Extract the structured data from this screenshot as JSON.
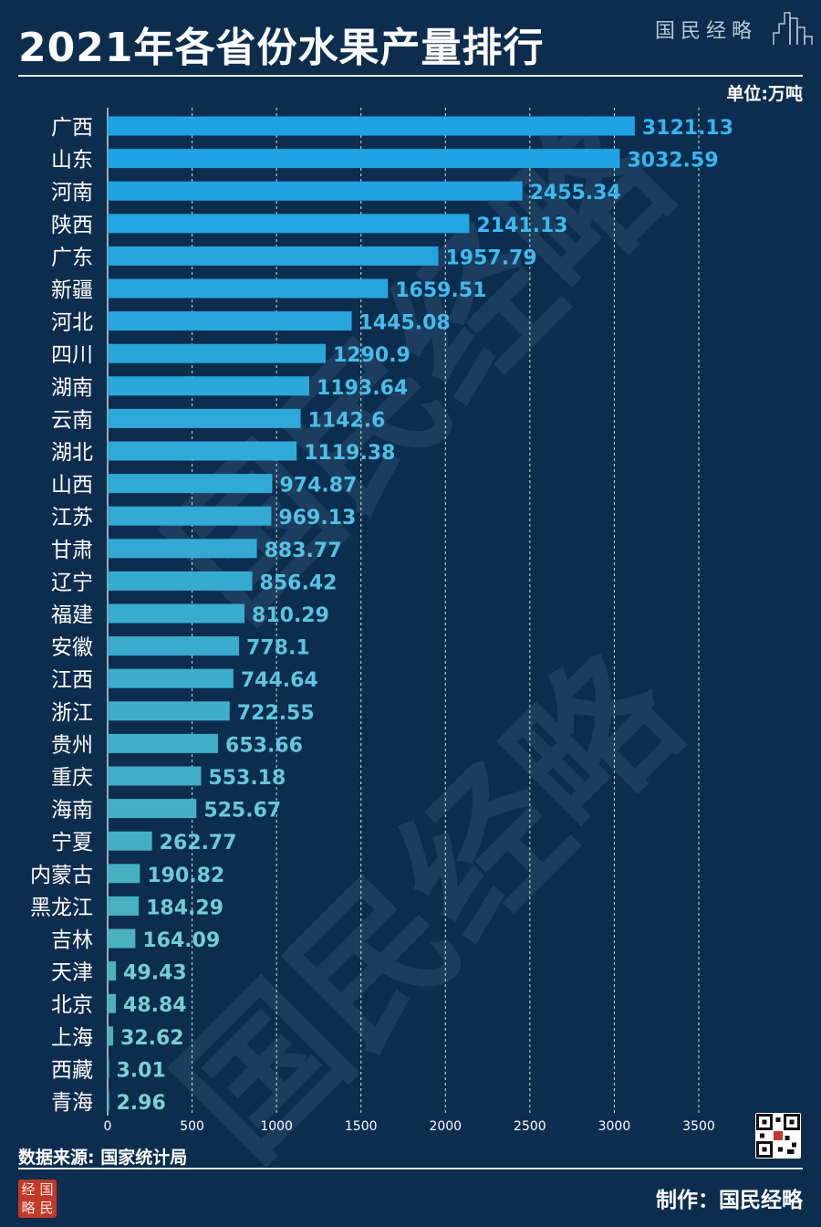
{
  "header": {
    "title": "2021年各省份水果产量排行",
    "brand": "国民经略",
    "unit": "单位:万吨"
  },
  "footer": {
    "source": "数据来源: 国家统计局",
    "maker": "制作：国民经略",
    "seal_text": [
      "经",
      "国",
      "略",
      "民"
    ]
  },
  "watermark_text": "国民经略",
  "colors": {
    "background": "#0c2d4e",
    "bar_top": "#1da3e6",
    "bar_bottom": "#52b4b8",
    "label_top": "#35b6f2",
    "label_bottom": "#7fd1d2",
    "grid": "#ffffff"
  },
  "chart_data": {
    "type": "bar",
    "orientation": "horizontal",
    "categories": [
      "广西",
      "山东",
      "河南",
      "陕西",
      "广东",
      "新疆",
      "河北",
      "四川",
      "湖南",
      "云南",
      "湖北",
      "山西",
      "江苏",
      "甘肃",
      "辽宁",
      "福建",
      "安徽",
      "江西",
      "浙江",
      "贵州",
      "重庆",
      "海南",
      "宁夏",
      "内蒙古",
      "黑龙江",
      "吉林",
      "天津",
      "北京",
      "上海",
      "西藏",
      "青海"
    ],
    "values": [
      3121.13,
      3032.59,
      2455.34,
      2141.13,
      1957.79,
      1659.51,
      1445.08,
      1290.9,
      1193.64,
      1142.6,
      1119.38,
      974.87,
      969.13,
      883.77,
      856.42,
      810.29,
      778.1,
      744.64,
      722.55,
      653.66,
      553.18,
      525.67,
      262.77,
      190.82,
      184.29,
      164.09,
      49.43,
      48.84,
      32.62,
      3.01,
      2.96
    ],
    "value_labels": [
      "3121.13",
      "3032.59",
      "2455.34",
      "2141.13",
      "1957.79",
      "1659.51",
      "1445.08",
      "1290.9",
      "1193.64",
      "1142.6",
      "1119.38",
      "974.87",
      "969.13",
      "883.77",
      "856.42",
      "810.29",
      "778.1",
      "744.64",
      "722.55",
      "653.66",
      "553.18",
      "525.67",
      "262.77",
      "190.82",
      "184.29",
      "164.09",
      "49.43",
      "48.84",
      "32.62",
      "3.01",
      "2.96"
    ],
    "xlim": [
      0,
      3500
    ],
    "xticks": [
      "0",
      "500",
      "1000",
      "1500",
      "2000",
      "2500",
      "3000",
      "3500"
    ],
    "grid": true,
    "title": "2021年各省份水果产量排行",
    "unit": "单位:万吨"
  }
}
